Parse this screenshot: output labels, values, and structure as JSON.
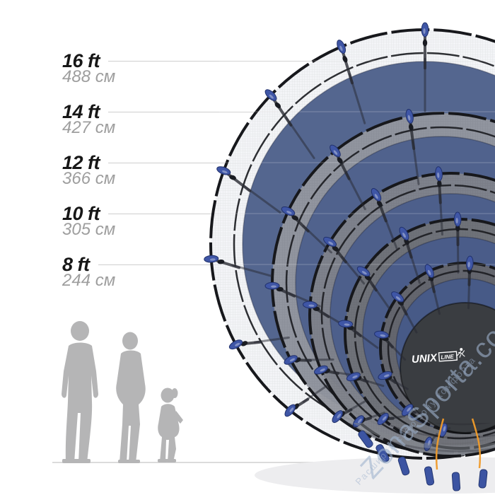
{
  "sizes": [
    {
      "id": "16ft",
      "ft": "16 ft",
      "cm": "488 см"
    },
    {
      "id": "14ft",
      "ft": "14 ft",
      "cm": "427 см"
    },
    {
      "id": "12ft",
      "ft": "12 ft",
      "cm": "366 см"
    },
    {
      "id": "10ft",
      "ft": "10 ft",
      "cm": "305 см"
    },
    {
      "id": "8ft",
      "ft": "8 ft",
      "cm": "244 см"
    }
  ],
  "logo": {
    "brand": "UNIX",
    "sub": "LINE"
  },
  "watermark": {
    "site": "ZonaSporta.com",
    "slogan": "Расширяй свою зону комфорта"
  },
  "colors": {
    "label_text": "#171717",
    "cm_text": "#9e9e9e",
    "leader_line": "#c6c6c6",
    "pad_blue": "#54668f",
    "cap_blue": "#3f56a6",
    "mat_dark": "#3a3d41",
    "net_light": "#f0f1f4",
    "rail_black": "#17181c",
    "silhouette_gray": "#b5b5b6",
    "cord_orange": "#f09b2a",
    "ground_line": "#dbdbdb",
    "watermark_blue": "#9eb2cd"
  }
}
